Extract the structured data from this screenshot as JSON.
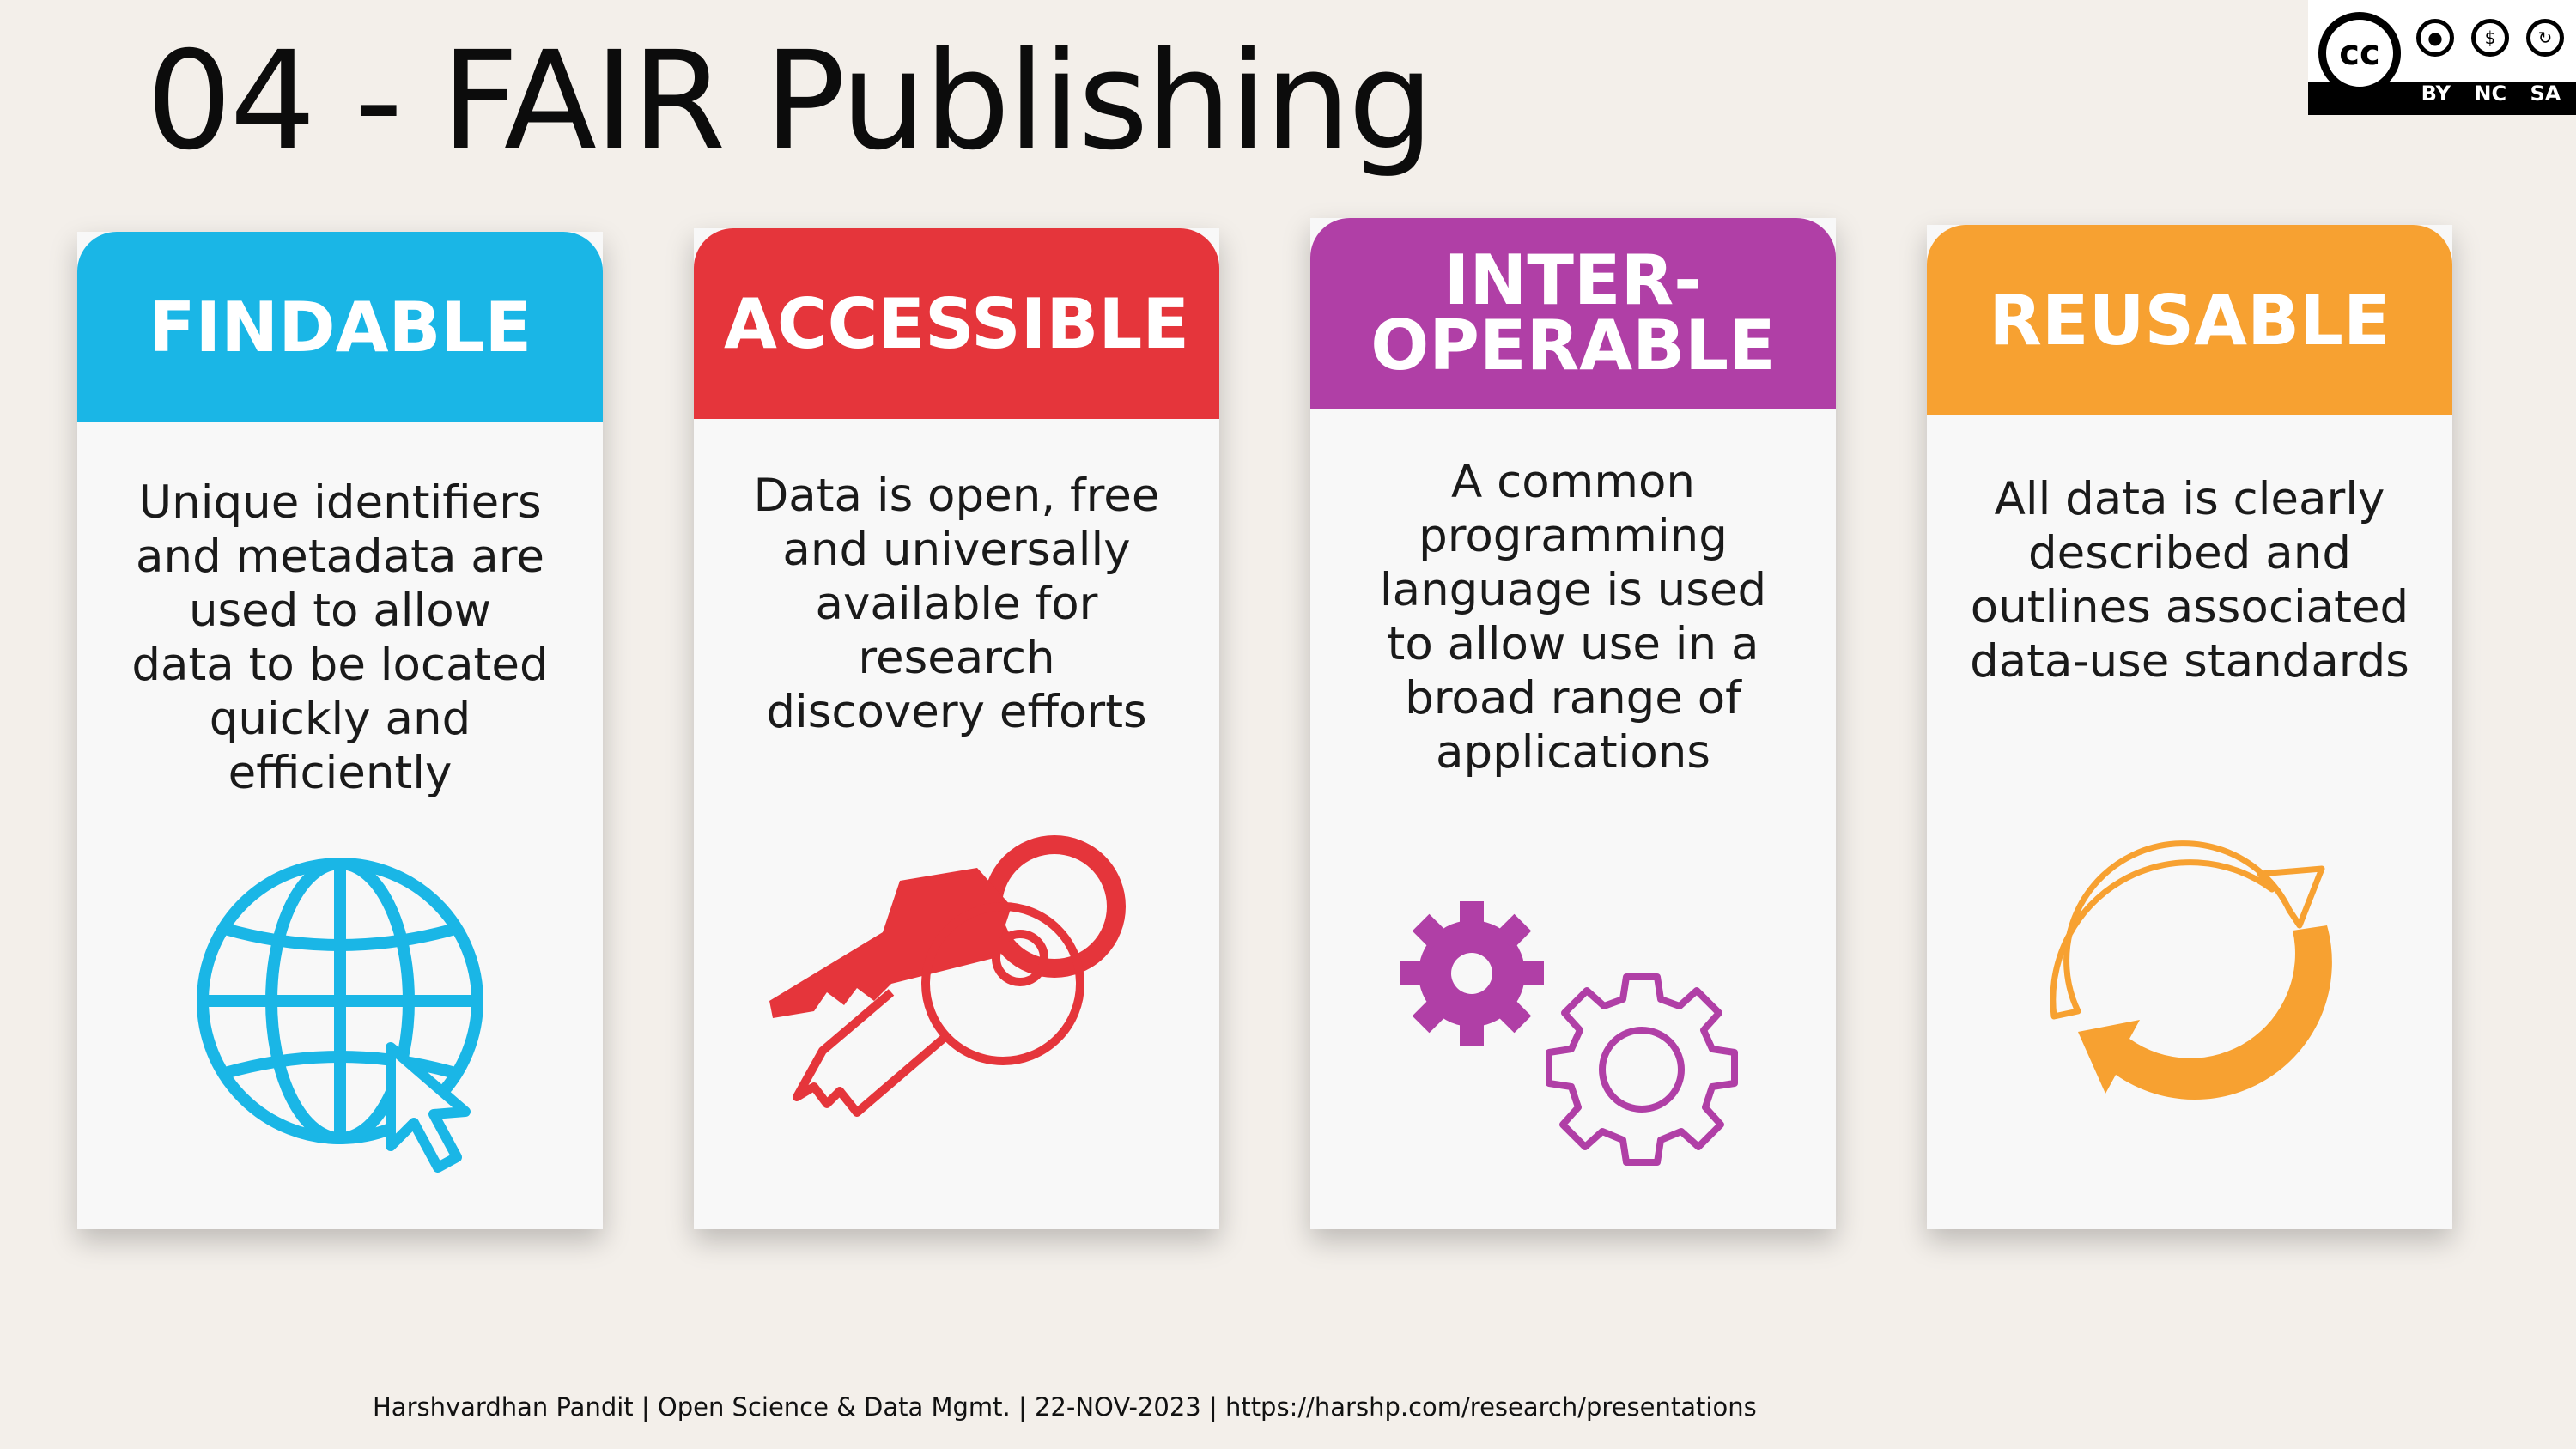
{
  "slide": {
    "title": "04 - FAIR Publishing",
    "footer": "Harshvardhan Pandit | Open Science & Data Mgmt. | 22-NOV-2023 | https://harshp.com/research/presentations"
  },
  "license_badge": {
    "cc_label": "cc",
    "labels": [
      "BY",
      "NC",
      "SA"
    ]
  },
  "cards": [
    {
      "heading": "FINDABLE",
      "text": "Unique identifiers\nand metadata are\nused to allow\ndata to be located\nquickly and\nefficiently",
      "color": "#1ab6e6",
      "icon": "globe-cursor-icon"
    },
    {
      "heading": "ACCESSIBLE",
      "text": "Data is open, free\nand universally\navailable for\nresearch\ndiscovery efforts",
      "color": "#e5353b",
      "icon": "keys-icon"
    },
    {
      "heading": "INTER-\nOPERABLE",
      "text": "A common\nprogramming\nlanguage is used\nto allow use in a\nbroad range of\napplications",
      "color": "#b03fa6",
      "icon": "gears-icon"
    },
    {
      "heading": "REUSABLE",
      "text": "All data is clearly\ndescribed and\noutlines associated\ndata-use standards",
      "color": "#f7a131",
      "icon": "cycle-arrows-icon"
    }
  ]
}
